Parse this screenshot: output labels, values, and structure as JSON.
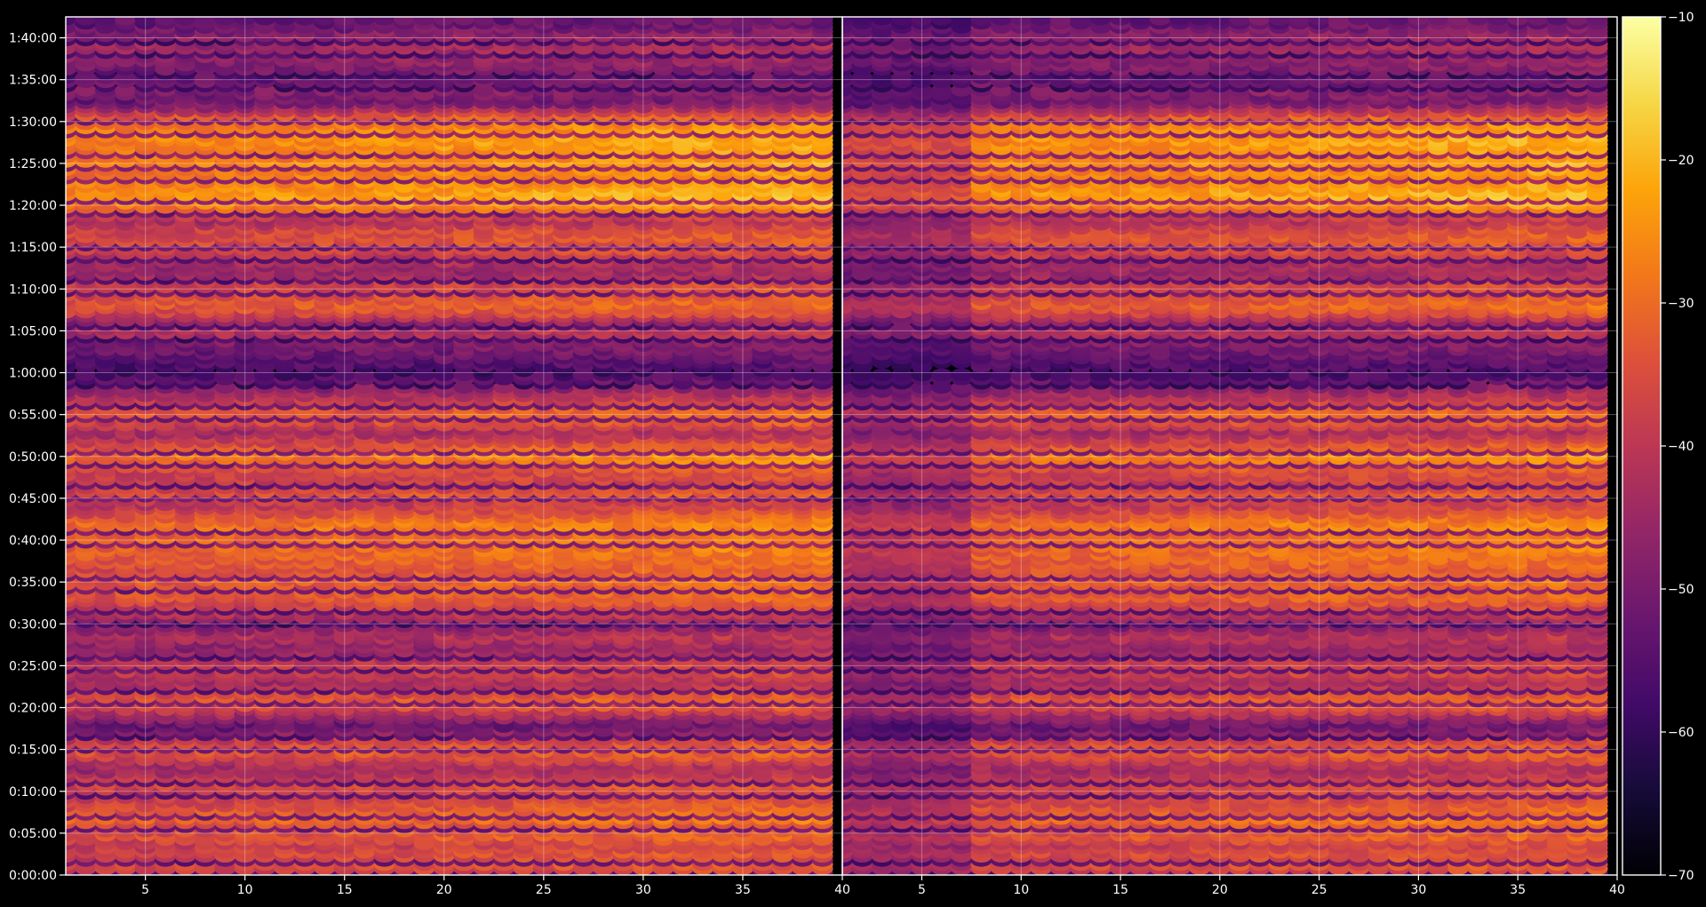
{
  "chart_data": {
    "type": "heatmap",
    "title": "",
    "xlabel": "",
    "ylabel": "",
    "panels": [
      {
        "name": "",
        "xlim": [
          1,
          40
        ],
        "xticks": [
          5,
          10,
          15,
          20,
          25,
          30,
          35,
          40
        ]
      },
      {
        "name": "",
        "xlim": [
          1,
          40
        ],
        "xticks": [
          5,
          10,
          15,
          20,
          25,
          30,
          35,
          40
        ]
      }
    ],
    "x_channels": [
      1,
      39
    ],
    "y_unit": "time",
    "ylim_seconds": [
      0,
      6150
    ],
    "yticks": [
      {
        "seconds": 0,
        "label": "0:00:00"
      },
      {
        "seconds": 300,
        "label": "0:05:00"
      },
      {
        "seconds": 600,
        "label": "0:10:00"
      },
      {
        "seconds": 900,
        "label": "0:15:00"
      },
      {
        "seconds": 1200,
        "label": "0:20:00"
      },
      {
        "seconds": 1500,
        "label": "0:25:00"
      },
      {
        "seconds": 1800,
        "label": "0:30:00"
      },
      {
        "seconds": 2100,
        "label": "0:35:00"
      },
      {
        "seconds": 2400,
        "label": "0:40:00"
      },
      {
        "seconds": 2700,
        "label": "0:45:00"
      },
      {
        "seconds": 3000,
        "label": "0:50:00"
      },
      {
        "seconds": 3300,
        "label": "0:55:00"
      },
      {
        "seconds": 3600,
        "label": "1:00:00"
      },
      {
        "seconds": 3900,
        "label": "1:05:00"
      },
      {
        "seconds": 4200,
        "label": "1:10:00"
      },
      {
        "seconds": 4500,
        "label": "1:15:00"
      },
      {
        "seconds": 4800,
        "label": "1:20:00"
      },
      {
        "seconds": 5100,
        "label": "1:25:00"
      },
      {
        "seconds": 5400,
        "label": "1:30:00"
      },
      {
        "seconds": 5700,
        "label": "1:35:00"
      },
      {
        "seconds": 6000,
        "label": "1:40:00"
      }
    ],
    "colorbar": {
      "colormap": "inferno",
      "range": [
        -70,
        -10
      ],
      "ticks": [
        -10,
        -20,
        -30,
        -40,
        -50,
        -60,
        -70
      ]
    },
    "grid": true,
    "intensity_bands": [
      {
        "t": 0,
        "lvl": 0.4
      },
      {
        "t": 55,
        "lvl": 0.62
      },
      {
        "t": 110,
        "lvl": 0.58
      },
      {
        "t": 170,
        "lvl": 0.6
      },
      {
        "t": 230,
        "lvl": 0.55
      },
      {
        "t": 290,
        "lvl": 0.66
      },
      {
        "t": 350,
        "lvl": 0.58
      },
      {
        "t": 410,
        "lvl": 0.7
      },
      {
        "t": 470,
        "lvl": 0.64
      },
      {
        "t": 600,
        "lvl": 0.55
      },
      {
        "t": 660,
        "lvl": 0.62
      },
      {
        "t": 720,
        "lvl": 0.5
      },
      {
        "t": 780,
        "lvl": 0.45
      },
      {
        "t": 850,
        "lvl": 0.58
      },
      {
        "t": 900,
        "lvl": 0.66
      },
      {
        "t": 960,
        "lvl": 0.6
      },
      {
        "t": 1020,
        "lvl": 0.42
      },
      {
        "t": 1080,
        "lvl": 0.28
      },
      {
        "t": 1250,
        "lvl": 0.68
      },
      {
        "t": 1330,
        "lvl": 0.55
      },
      {
        "t": 1400,
        "lvl": 0.45
      },
      {
        "t": 1470,
        "lvl": 0.58
      },
      {
        "t": 1550,
        "lvl": 0.52
      },
      {
        "t": 1640,
        "lvl": 0.4
      },
      {
        "t": 1720,
        "lvl": 0.5
      },
      {
        "t": 1800,
        "lvl": 0.36
      },
      {
        "t": 1880,
        "lvl": 0.5
      },
      {
        "t": 1950,
        "lvl": 0.58
      },
      {
        "t": 2010,
        "lvl": 0.66
      },
      {
        "t": 2070,
        "lvl": 0.62
      },
      {
        "t": 2130,
        "lvl": 0.68
      },
      {
        "t": 2190,
        "lvl": 0.62
      },
      {
        "t": 2260,
        "lvl": 0.66
      },
      {
        "t": 2400,
        "lvl": 0.72
      },
      {
        "t": 2460,
        "lvl": 0.66
      },
      {
        "t": 2520,
        "lvl": 0.74
      },
      {
        "t": 2600,
        "lvl": 0.62
      },
      {
        "t": 2670,
        "lvl": 0.52
      },
      {
        "t": 2730,
        "lvl": 0.64
      },
      {
        "t": 2800,
        "lvl": 0.55
      },
      {
        "t": 2900,
        "lvl": 0.58
      },
      {
        "t": 2960,
        "lvl": 0.7
      },
      {
        "t": 3020,
        "lvl": 0.74
      },
      {
        "t": 3190,
        "lvl": 0.45
      },
      {
        "t": 3240,
        "lvl": 0.58
      },
      {
        "t": 3300,
        "lvl": 0.68
      },
      {
        "t": 3360,
        "lvl": 0.62
      },
      {
        "t": 3600,
        "lvl": 0.22
      },
      {
        "t": 3660,
        "lvl": 0.24
      },
      {
        "t": 3760,
        "lvl": 0.32
      },
      {
        "t": 3840,
        "lvl": 0.38
      },
      {
        "t": 3900,
        "lvl": 0.52
      },
      {
        "t": 3970,
        "lvl": 0.4
      },
      {
        "t": 4040,
        "lvl": 0.6
      },
      {
        "t": 4100,
        "lvl": 0.66
      },
      {
        "t": 4170,
        "lvl": 0.6
      },
      {
        "t": 4240,
        "lvl": 0.58
      },
      {
        "t": 4320,
        "lvl": 0.42
      },
      {
        "t": 4420,
        "lvl": 0.48
      },
      {
        "t": 4490,
        "lvl": 0.58
      },
      {
        "t": 4560,
        "lvl": 0.62
      },
      {
        "t": 4630,
        "lvl": 0.6
      },
      {
        "t": 4700,
        "lvl": 0.48
      },
      {
        "t": 4820,
        "lvl": 0.78
      },
      {
        "t": 4880,
        "lvl": 0.82
      },
      {
        "t": 4950,
        "lvl": 0.78
      },
      {
        "t": 5030,
        "lvl": 0.74
      },
      {
        "t": 5100,
        "lvl": 0.8
      },
      {
        "t": 5160,
        "lvl": 0.74
      },
      {
        "t": 5230,
        "lvl": 0.78
      },
      {
        "t": 5300,
        "lvl": 0.8
      },
      {
        "t": 5380,
        "lvl": 0.74
      },
      {
        "t": 5440,
        "lvl": 0.66
      },
      {
        "t": 5550,
        "lvl": 0.32
      },
      {
        "t": 5640,
        "lvl": 0.38
      },
      {
        "t": 5720,
        "lvl": 0.3
      },
      {
        "t": 5850,
        "lvl": 0.4
      },
      {
        "t": 5940,
        "lvl": 0.45
      },
      {
        "t": 6020,
        "lvl": 0.42
      },
      {
        "t": 6100,
        "lvl": 0.3
      }
    ]
  }
}
